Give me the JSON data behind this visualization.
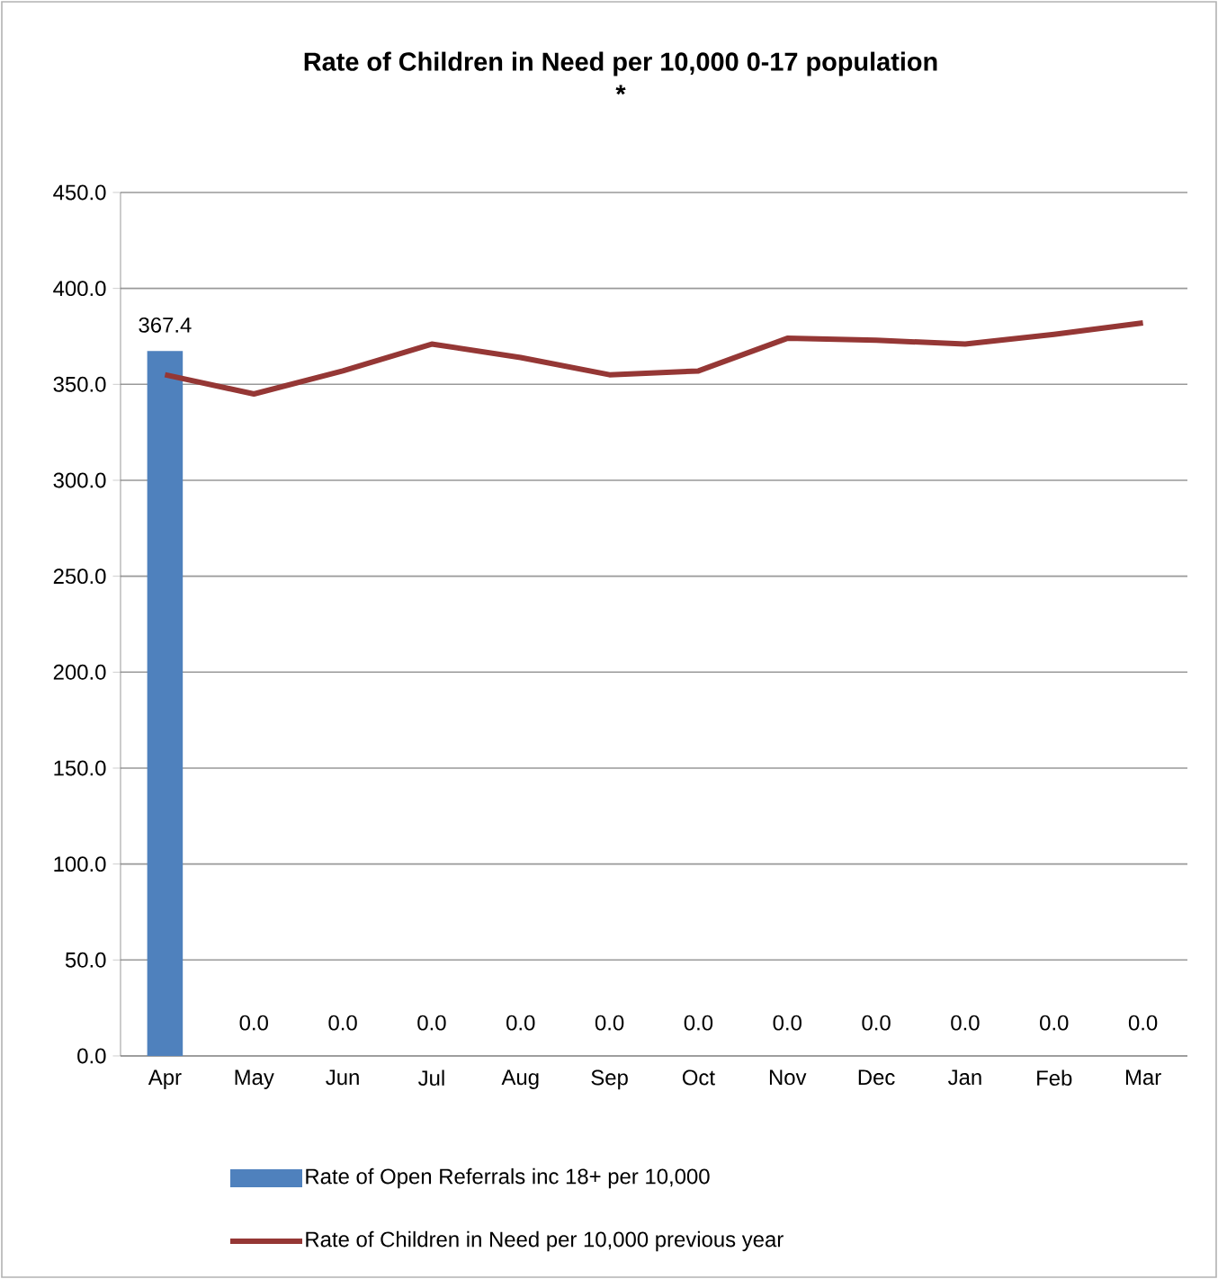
{
  "chart_data": {
    "type": "bar",
    "title": "Rate of Children in Need per 10,000 0-17 population",
    "subtitle": "*",
    "categories": [
      "Apr",
      "May",
      "Jun",
      "Jul",
      "Aug",
      "Sep",
      "Oct",
      "Nov",
      "Dec",
      "Jan",
      "Feb",
      "Mar"
    ],
    "series": [
      {
        "name": "Rate of Open Referrals inc 18+ per 10,000",
        "type": "bar",
        "color": "#4f81bd",
        "values": [
          367.4,
          0,
          0,
          0,
          0,
          0,
          0,
          0,
          0,
          0,
          0,
          0
        ],
        "value_labels": [
          "367.4",
          "0.0",
          "0.0",
          "0.0",
          "0.0",
          "0.0",
          "0.0",
          "0.0",
          "0.0",
          "0.0",
          "0.0",
          "0.0"
        ]
      },
      {
        "name": "Rate of Children in Need per 10,000 previous year",
        "type": "line",
        "color": "#953735",
        "values": [
          355,
          345,
          357,
          371,
          364,
          355,
          357,
          374,
          373,
          371,
          376,
          382
        ]
      }
    ],
    "ylim": [
      0,
      450
    ],
    "yticks": [
      {
        "value": 0,
        "label": "0.0"
      },
      {
        "value": 50,
        "label": "50.0"
      },
      {
        "value": 100,
        "label": "100.0"
      },
      {
        "value": 150,
        "label": "150.0"
      },
      {
        "value": 200,
        "label": "200.0"
      },
      {
        "value": 250,
        "label": "250.0"
      },
      {
        "value": 300,
        "label": "300.0"
      },
      {
        "value": 350,
        "label": "350.0"
      },
      {
        "value": 400,
        "label": "400.0"
      },
      {
        "value": 450,
        "label": "450.0"
      }
    ],
    "grid": "y",
    "legend": "bottom",
    "marker": "none",
    "line_style": "solid"
  }
}
